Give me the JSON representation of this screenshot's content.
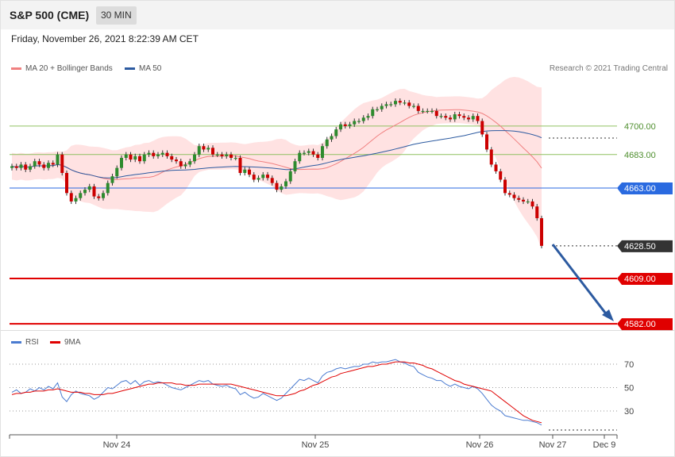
{
  "header": {
    "title": "S&P 500 (CME)",
    "timeframe": "30 MIN"
  },
  "datetime": "Friday, November 26, 2021 8:22:39 AM CET",
  "copyright": "Research © 2021 Trading Central",
  "legend_price": [
    {
      "label": "MA 20 + Bollinger Bands",
      "color": "#f08080"
    },
    {
      "label": "MA 50",
      "color": "#2c5aa0"
    }
  ],
  "legend_rsi": [
    {
      "label": "RSI",
      "color": "#4a7bd0"
    },
    {
      "label": "9MA",
      "color": "#e00000"
    }
  ],
  "colors": {
    "up": "#2e8b2e",
    "down": "#cc0000",
    "resistance": "#8fc060",
    "support": "#e00000",
    "pivot": "#2a6ae0",
    "arrow": "#2c5aa0"
  },
  "chart_data": [
    {
      "type": "candlestick",
      "x_ticks": [
        "Nov 24",
        "Nov 25",
        "Nov 26",
        "Nov 27",
        "Dec 9"
      ],
      "ylim": [
        4575,
        4725
      ],
      "levels": [
        {
          "value": 4700.0,
          "label": "4700.00",
          "kind": "resistance"
        },
        {
          "value": 4683.0,
          "label": "4683.00",
          "kind": "resistance"
        },
        {
          "value": 4663.0,
          "label": "4663.00",
          "kind": "pivot"
        },
        {
          "value": 4628.5,
          "label": "4628.50",
          "kind": "last"
        },
        {
          "value": 4609.0,
          "label": "4609.00",
          "kind": "support"
        },
        {
          "value": 4582.0,
          "label": "4582.00",
          "kind": "support"
        }
      ],
      "close": [
        4676,
        4675,
        4677,
        4674,
        4676,
        4679,
        4677,
        4675,
        4678,
        4677,
        4683,
        4672,
        4660,
        4655,
        4657,
        4660,
        4662,
        4664,
        4658,
        4657,
        4660,
        4666,
        4670,
        4675,
        4681,
        4683,
        4680,
        4682,
        4679,
        4683,
        4684,
        4682,
        4683,
        4684,
        4682,
        4680,
        4679,
        4676,
        4677,
        4679,
        4683,
        4688,
        4686,
        4687,
        4683,
        4683,
        4682,
        4683,
        4681,
        4681,
        4672,
        4674,
        4671,
        4668,
        4669,
        4671,
        4669,
        4666,
        4662,
        4664,
        4667,
        4673,
        4679,
        4684,
        4684,
        4685,
        4683,
        4681,
        4688,
        4692,
        4694,
        4698,
        4701,
        4700,
        4701,
        4703,
        4703,
        4705,
        4706,
        4710,
        4710,
        4712,
        4713,
        4713,
        4715,
        4714,
        4714,
        4712,
        4712,
        4709,
        4709,
        4709,
        4709,
        4706,
        4706,
        4705,
        4704,
        4707,
        4706,
        4705,
        4704,
        4706,
        4703,
        4695,
        4686,
        4677,
        4673,
        4668,
        4660,
        4659,
        4657,
        4656,
        4655,
        4655,
        4652,
        4645,
        4628.5
      ],
      "title": "",
      "xlabel": "",
      "ylabel": ""
    },
    {
      "type": "line",
      "title": "",
      "ylim": [
        15,
        80
      ],
      "y_ticks": [
        70,
        50,
        30
      ],
      "series": [
        {
          "name": "RSI",
          "values": [
            46,
            48,
            45,
            46,
            49,
            47,
            50,
            48,
            51,
            49,
            54,
            42,
            38,
            44,
            47,
            45,
            44,
            43,
            40,
            42,
            46,
            50,
            49,
            52,
            55,
            56,
            53,
            56,
            52,
            55,
            56,
            54,
            55,
            54,
            52,
            50,
            49,
            48,
            50,
            52,
            54,
            56,
            55,
            56,
            53,
            52,
            51,
            52,
            50,
            49,
            44,
            46,
            43,
            41,
            42,
            45,
            43,
            41,
            39,
            41,
            45,
            49,
            53,
            57,
            56,
            58,
            56,
            54,
            60,
            63,
            64,
            66,
            67,
            66,
            67,
            68,
            68,
            70,
            70,
            72,
            71,
            72,
            72,
            73,
            74,
            72,
            71,
            69,
            68,
            63,
            61,
            59,
            58,
            56,
            56,
            53,
            51,
            53,
            51,
            50,
            49,
            51,
            49,
            45,
            40,
            35,
            32,
            30,
            26,
            25,
            24,
            23,
            22,
            22,
            21,
            20,
            18
          ]
        },
        {
          "name": "9MA",
          "values": [
            44,
            45,
            45,
            46,
            46,
            47,
            47,
            47,
            48,
            48,
            49,
            48,
            47,
            46,
            46,
            46,
            45,
            45,
            44,
            44,
            44,
            45,
            45,
            46,
            47,
            48,
            49,
            50,
            51,
            52,
            53,
            53,
            54,
            54,
            54,
            54,
            53,
            53,
            52,
            52,
            52,
            53,
            53,
            53,
            53,
            53,
            53,
            53,
            53,
            52,
            51,
            50,
            49,
            48,
            47,
            46,
            45,
            44,
            43,
            43,
            43,
            44,
            45,
            47,
            48,
            50,
            52,
            53,
            55,
            57,
            59,
            60,
            62,
            63,
            64,
            65,
            66,
            67,
            68,
            68,
            69,
            70,
            70,
            71,
            72,
            72,
            72,
            71,
            71,
            70,
            69,
            67,
            66,
            64,
            62,
            60,
            58,
            56,
            55,
            53,
            52,
            51,
            50,
            49,
            48,
            47,
            44,
            41,
            38,
            35,
            32,
            29,
            26,
            24,
            22,
            21,
            20
          ]
        }
      ]
    }
  ]
}
